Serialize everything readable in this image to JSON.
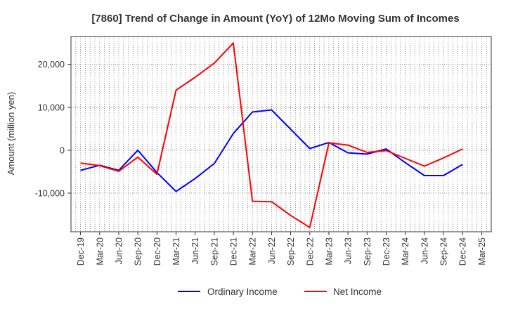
{
  "chart_data": {
    "type": "line",
    "title": "[7860]  Trend of Change in Amount (YoY) of 12Mo Moving Sum of Incomes",
    "ylabel": "Amount (million yen)",
    "xlabel": "",
    "ylim": [
      -19000,
      26500
    ],
    "yticks": [
      -10000,
      0,
      10000,
      20000
    ],
    "ytick_labels": [
      "-10,000",
      "0",
      "10,000",
      "20,000"
    ],
    "grid": true,
    "legend_position": "bottom-center",
    "x": [
      "Dec-19",
      "Mar-20",
      "Jun-20",
      "Sep-20",
      "Dec-20",
      "Mar-21",
      "Jun-21",
      "Sep-21",
      "Dec-21",
      "Mar-22",
      "Jun-22",
      "Sep-22",
      "Dec-22",
      "Mar-23",
      "Jun-23",
      "Sep-23",
      "Dec-23",
      "Mar-24",
      "Jun-24",
      "Sep-24",
      "Dec-24",
      "Mar-25"
    ],
    "series": [
      {
        "name": "Ordinary Income",
        "color": "#0000ff",
        "values": [
          -4700,
          -3500,
          -4700,
          0,
          -5200,
          -9600,
          -6600,
          -3100,
          3900,
          8900,
          9400,
          4900,
          400,
          1800,
          -600,
          -900,
          300,
          -2900,
          -5900,
          -5900,
          -3300,
          null
        ]
      },
      {
        "name": "Net Income",
        "color": "#ff0000",
        "values": [
          -3000,
          -3600,
          -4900,
          -1600,
          -5600,
          14000,
          17000,
          20300,
          25000,
          -11900,
          -12000,
          -15200,
          -18000,
          1700,
          1200,
          -500,
          -100,
          -1900,
          -3700,
          -1800,
          300,
          null
        ]
      }
    ]
  }
}
